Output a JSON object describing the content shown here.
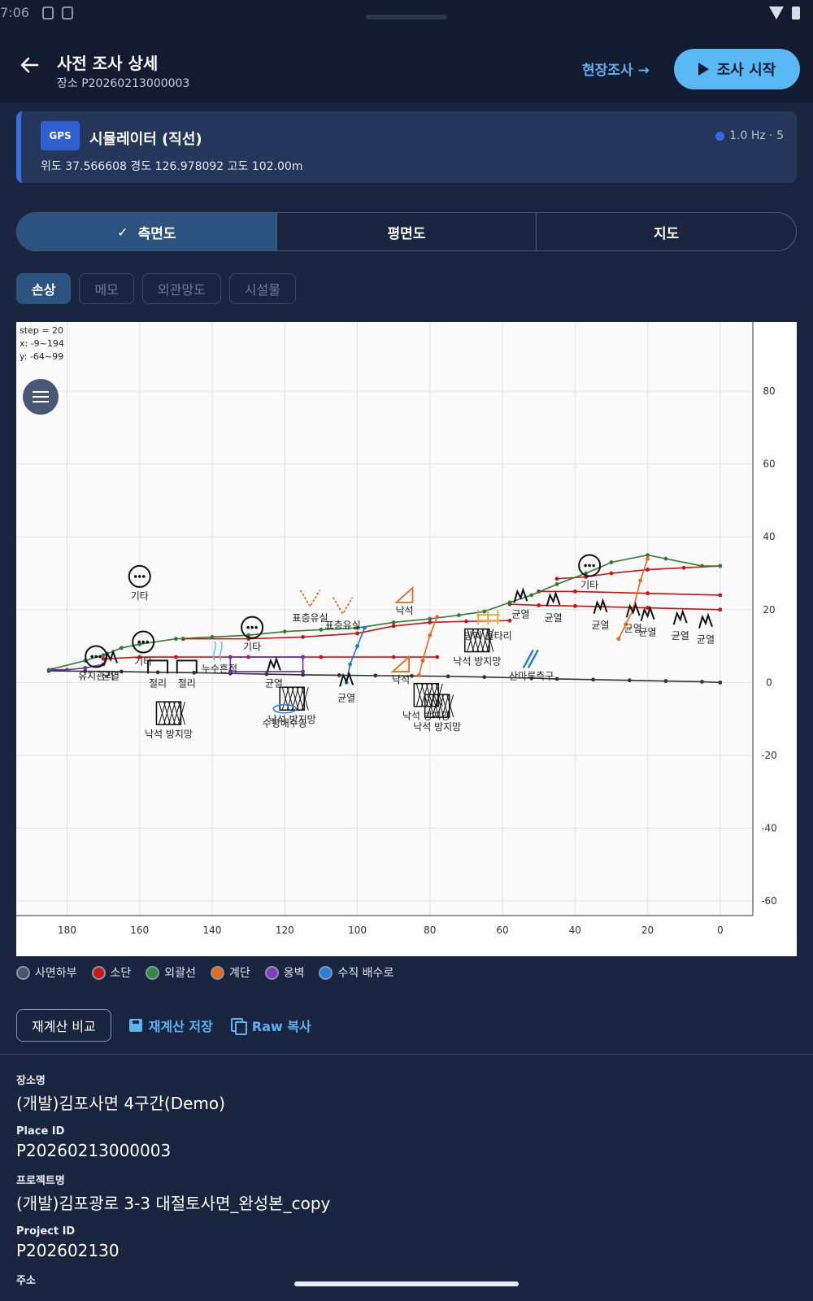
{
  "status": {
    "time": "7:06"
  },
  "header": {
    "title": "사전 조사 상세",
    "subtitle": "장소 P20260213000003",
    "field_link": "현장조사 →",
    "start_button": "조사 시작"
  },
  "gps": {
    "badge": "GPS",
    "title": "시뮬레이터 (직선)",
    "rate": "1.0 Hz · 5",
    "coords": "위도 37.566608  경도 126.978092  고도 102.00m"
  },
  "tabs": [
    {
      "label": "측면도",
      "active": true
    },
    {
      "label": "평면도",
      "active": false
    },
    {
      "label": "지도",
      "active": false
    }
  ],
  "chips": [
    {
      "label": "손상",
      "active": true
    },
    {
      "label": "메모",
      "active": false
    },
    {
      "label": "외관망도",
      "active": false
    },
    {
      "label": "시설물",
      "active": false
    }
  ],
  "chart_info": {
    "step": "step = 20",
    "x": "x: -9~194",
    "y": "y: -64~99"
  },
  "chart_data": {
    "type": "line",
    "x_reversed": true,
    "xlim": [
      -9,
      194
    ],
    "ylim": [
      -64,
      99
    ],
    "x_ticks": [
      180,
      160,
      140,
      120,
      100,
      80,
      60,
      40,
      20,
      0
    ],
    "y_ticks": [
      80,
      60,
      40,
      20,
      0,
      -20,
      -40,
      -60
    ],
    "grid": true,
    "series": [
      {
        "name": "사면하부",
        "color": "#333333",
        "points": [
          [
            0,
            0
          ],
          [
            5,
            0.2
          ],
          [
            15,
            0.4
          ],
          [
            25,
            0.6
          ],
          [
            35,
            0.8
          ],
          [
            45,
            1
          ],
          [
            52,
            1.2
          ],
          [
            65,
            1.5
          ],
          [
            75,
            1.7
          ],
          [
            85,
            1.8
          ],
          [
            95,
            1.9
          ],
          [
            105,
            2
          ],
          [
            115,
            2.1
          ],
          [
            125,
            2.3
          ],
          [
            135,
            2.5
          ],
          [
            145,
            2.7
          ],
          [
            155,
            2.8
          ],
          [
            165,
            3
          ],
          [
            175,
            3.1
          ],
          [
            185,
            3.2
          ]
        ]
      },
      {
        "name": "소단",
        "color": "#cc1111",
        "points": [
          [
            0,
            32
          ],
          [
            10,
            31.5
          ],
          [
            20,
            31
          ],
          [
            30,
            30
          ],
          [
            37,
            29
          ],
          [
            45,
            28.5
          ]
        ]
      },
      {
        "name": "소단",
        "color": "#cc1111",
        "points": [
          [
            0,
            24
          ],
          [
            20,
            24.5
          ],
          [
            40,
            25
          ],
          [
            50,
            25
          ]
        ]
      },
      {
        "name": "소단",
        "color": "#cc1111",
        "points": [
          [
            0,
            20
          ],
          [
            20,
            20.5
          ],
          [
            40,
            21
          ],
          [
            50,
            21.2
          ],
          [
            58,
            21.5
          ]
        ]
      },
      {
        "name": "소단",
        "color": "#cc1111",
        "points": [
          [
            58,
            17
          ],
          [
            70,
            16.8
          ],
          [
            80,
            16.5
          ],
          [
            90,
            15.5
          ],
          [
            100,
            13.5
          ],
          [
            115,
            12.5
          ],
          [
            130,
            12
          ],
          [
            148,
            12
          ]
        ]
      },
      {
        "name": "소단",
        "color": "#cc1111",
        "points": [
          [
            78,
            7
          ],
          [
            90,
            7
          ],
          [
            110,
            7
          ],
          [
            130,
            7
          ],
          [
            150,
            7
          ],
          [
            160,
            7
          ],
          [
            170,
            6.5
          ]
        ]
      },
      {
        "name": "외괄선",
        "color": "#2e7d32",
        "points": [
          [
            0,
            32
          ],
          [
            5,
            32
          ],
          [
            15,
            34
          ],
          [
            20,
            35
          ],
          [
            30,
            33
          ],
          [
            37,
            30
          ],
          [
            45,
            27
          ],
          [
            52,
            24
          ],
          [
            58,
            22
          ],
          [
            65,
            19.5
          ],
          [
            72,
            18.5
          ],
          [
            80,
            17.5
          ],
          [
            90,
            16.5
          ],
          [
            100,
            15
          ],
          [
            110,
            14.5
          ],
          [
            120,
            14
          ],
          [
            130,
            13
          ],
          [
            140,
            12.5
          ],
          [
            150,
            12
          ],
          [
            160,
            10.5
          ],
          [
            165,
            9.5
          ],
          [
            170,
            7.5
          ],
          [
            175,
            6
          ],
          [
            185,
            3.5
          ]
        ]
      },
      {
        "name": "계단",
        "color": "#e86a1a",
        "points": [
          [
            20,
            34
          ],
          [
            22,
            28
          ],
          [
            24,
            20
          ],
          [
            26,
            16
          ],
          [
            28,
            12
          ]
        ]
      },
      {
        "name": "계단",
        "color": "#e86a1a",
        "points": [
          [
            78,
            18
          ],
          [
            80,
            13
          ],
          [
            82,
            6
          ],
          [
            83,
            2
          ]
        ]
      },
      {
        "name": "옹벽",
        "color": "#6a2fb0",
        "points": [
          [
            115,
            7
          ],
          [
            135,
            7
          ],
          [
            135,
            3
          ],
          [
            115,
            3
          ],
          [
            115,
            7
          ]
        ]
      },
      {
        "name": "옹벽",
        "color": "#6a2fb0",
        "points": [
          [
            170,
            5
          ],
          [
            175,
            4
          ],
          [
            180,
            3.5
          ],
          [
            184,
            3.5
          ]
        ]
      },
      {
        "name": "수직 배수로",
        "color": "#1e78d2",
        "points": [
          [
            98,
            15
          ],
          [
            100,
            10
          ],
          [
            102,
            5
          ],
          [
            103,
            0
          ]
        ]
      }
    ],
    "annotations": [
      {
        "label": "기타",
        "x": 160,
        "y": 26,
        "icon": "dots-circle"
      },
      {
        "label": "기타",
        "x": 129,
        "y": 12,
        "icon": "dots-circle"
      },
      {
        "label": "기타",
        "x": 159,
        "y": 8,
        "icon": "dots-circle"
      },
      {
        "label": "기타",
        "x": 36,
        "y": 29,
        "icon": "dots-circle"
      },
      {
        "label": "유지관리",
        "x": 172,
        "y": 4,
        "icon": "dots-circle"
      },
      {
        "label": "균열",
        "x": 168,
        "y": 4,
        "icon": "crack"
      },
      {
        "label": "균열",
        "x": 123,
        "y": 2,
        "icon": "crack"
      },
      {
        "label": "균열",
        "x": 103,
        "y": -2,
        "icon": "crack"
      },
      {
        "label": "균열",
        "x": 55,
        "y": 21,
        "icon": "crack"
      },
      {
        "label": "균열",
        "x": 46,
        "y": 20,
        "icon": "crack"
      },
      {
        "label": "균열",
        "x": 33,
        "y": 18,
        "icon": "crack"
      },
      {
        "label": "균열",
        "x": 24,
        "y": 17,
        "icon": "crack"
      },
      {
        "label": "균열",
        "x": 20,
        "y": 16,
        "icon": "crack"
      },
      {
        "label": "균열",
        "x": 11,
        "y": 15,
        "icon": "crack"
      },
      {
        "label": "균열",
        "x": 4,
        "y": 14,
        "icon": "crack"
      },
      {
        "label": "절리",
        "x": 155,
        "y": 2,
        "icon": "joint"
      },
      {
        "label": "절리",
        "x": 147,
        "y": 2,
        "icon": "joint"
      },
      {
        "label": "누수흔적",
        "x": 138,
        "y": 6,
        "icon": "leak"
      },
      {
        "label": "표층유실",
        "x": 113,
        "y": 20,
        "icon": "erosion"
      },
      {
        "label": "표층유실",
        "x": 104,
        "y": 18,
        "icon": "erosion"
      },
      {
        "label": "낙석",
        "x": 87,
        "y": 22,
        "icon": "rockfall"
      },
      {
        "label": "낙석",
        "x": 88,
        "y": 3,
        "icon": "rockfall"
      },
      {
        "label": "낙석 방지망",
        "x": 152,
        "y": -12,
        "icon": "net"
      },
      {
        "label": "낙석 방지망",
        "x": 118,
        "y": -8,
        "icon": "net"
      },
      {
        "label": "낙석 방지망",
        "x": 81,
        "y": -7,
        "icon": "net"
      },
      {
        "label": "낙석 방지망",
        "x": 78,
        "y": -10,
        "icon": "net"
      },
      {
        "label": "낙석 방지망",
        "x": 67,
        "y": 8,
        "icon": "net"
      },
      {
        "label": "수평배수공",
        "x": 120,
        "y": -9,
        "icon": "drain"
      },
      {
        "label": "방지 울타리",
        "x": 64,
        "y": 15,
        "icon": "fence"
      },
      {
        "label": "산마루측구",
        "x": 52,
        "y": 4,
        "icon": "gutter"
      }
    ]
  },
  "legend": [
    {
      "label": "사면하부",
      "color": "#4a5568"
    },
    {
      "label": "소단",
      "color": "#d01515"
    },
    {
      "label": "외괄선",
      "color": "#2e8b3a"
    },
    {
      "label": "계단",
      "color": "#e86a1a"
    },
    {
      "label": "옹벽",
      "color": "#7b3cc2"
    },
    {
      "label": "수직 배수로",
      "color": "#2a7fd6"
    }
  ],
  "actions": {
    "compare": "재계산 비교",
    "save": "재계산 저장",
    "copy": "Raw 복사"
  },
  "details": {
    "place_name_label": "장소명",
    "place_name": "(개발)김포사면 4구간(Demo)",
    "place_id_label": "Place ID",
    "place_id": "P20260213000003",
    "project_name_label": "프로젝트명",
    "project_name": "(개발)김포광로 3-3 대절토사면_완성본_copy",
    "project_id_label": "Project ID",
    "project_id": "P202602130",
    "address_label": "주소"
  }
}
